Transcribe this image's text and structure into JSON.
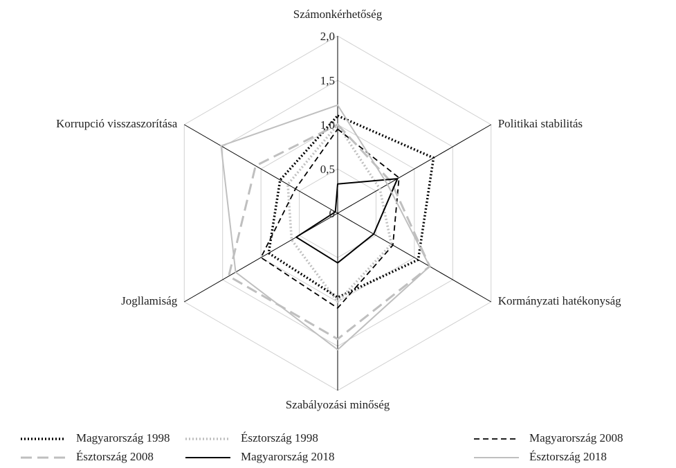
{
  "chart_data": {
    "type": "radar",
    "categories": [
      "Számonkérhetőség",
      "Politikai stabilitás",
      "Kormányzati hatékonyság",
      "Szabályozási minőség",
      "Jogllamiság",
      "Korrupció visszaszorítása"
    ],
    "ylim": [
      0,
      2
    ],
    "yticks": [
      0,
      {
        "value": 0.5,
        "label": "0,5"
      },
      {
        "value": 1,
        "label": "1,0"
      },
      {
        "value": 1.5,
        "label": "1,5"
      },
      {
        "value": 2,
        "label": "2,0"
      }
    ],
    "grid": true,
    "legend": "bottom",
    "series": [
      {
        "name": "Magyarország 1998",
        "color": "#000000",
        "dash": "dotted",
        "values": [
          1.1,
          1.25,
          1.05,
          0.95,
          0.9,
          0.75
        ]
      },
      {
        "name": "Észtország 1998",
        "color": "#bfbfbf",
        "dash": "dotted",
        "values": [
          1.0,
          0.55,
          0.7,
          1.0,
          0.6,
          0.65
        ]
      },
      {
        "name": "Magyarország 2008",
        "color": "#000000",
        "dash": "dashed",
        "values": [
          0.95,
          0.8,
          0.72,
          1.07,
          1.0,
          0.55
        ]
      },
      {
        "name": "Észtország 2008",
        "color": "#bfbfbf",
        "dash": "longdash",
        "values": [
          1.0,
          0.7,
          1.2,
          1.42,
          1.42,
          1.07
        ]
      },
      {
        "name": "Magyarország 2018",
        "color": "#000000",
        "dash": "solid",
        "values": [
          0.33,
          0.78,
          0.47,
          0.56,
          0.54,
          0.03
        ]
      },
      {
        "name": "Észtország 2018",
        "color": "#bfbfbf",
        "dash": "solid",
        "values": [
          1.22,
          0.65,
          1.2,
          1.54,
          1.33,
          1.52
        ]
      }
    ]
  }
}
